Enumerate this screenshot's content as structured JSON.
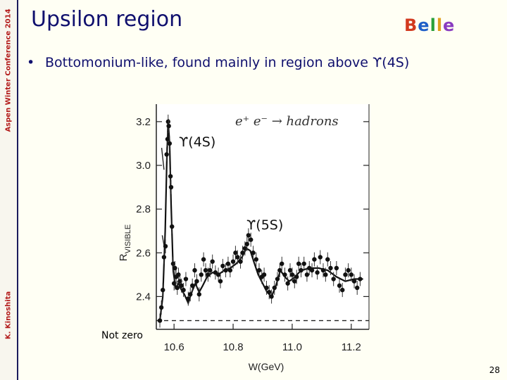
{
  "sidebar": {
    "conference": "Aspen Winter Conference 2014",
    "author": "K. Kinoshita"
  },
  "slide": {
    "title": "Upsilon region",
    "logo": "Belle",
    "bullet": "Bottomonium-like, found mainly in region above ϒ(4S)",
    "page_number": "28"
  },
  "chart_data": {
    "type": "scatter",
    "ylabel": "R",
    "ylabel_sub": "VISIBLE",
    "xlabel": "W(GeV)",
    "xlim": [
      10.54,
      11.26
    ],
    "ylim": [
      2.25,
      3.28
    ],
    "x_ticks": [
      "10.6",
      "10.8",
      "11.0",
      "11.2"
    ],
    "y_ticks": [
      "2.4",
      "2.6",
      "2.8",
      "3.0",
      "3.2"
    ],
    "annotations": {
      "process": "e⁺ e⁻ → hadrons",
      "peak_4s": "ϒ(4S)",
      "peak_5s": "ϒ(5S)",
      "baseline": "Not zero"
    },
    "baseline_level": 2.29,
    "points": [
      {
        "x": 10.552,
        "y": 2.29
      },
      {
        "x": 10.557,
        "y": 2.35
      },
      {
        "x": 10.562,
        "y": 2.43
      },
      {
        "x": 10.566,
        "y": 2.58
      },
      {
        "x": 10.571,
        "y": 2.63
      },
      {
        "x": 10.575,
        "y": 3.05
      },
      {
        "x": 10.578,
        "y": 3.12
      },
      {
        "x": 10.58,
        "y": 3.2
      },
      {
        "x": 10.582,
        "y": 3.18
      },
      {
        "x": 10.585,
        "y": 3.1
      },
      {
        "x": 10.588,
        "y": 2.95
      },
      {
        "x": 10.59,
        "y": 2.9
      },
      {
        "x": 10.593,
        "y": 2.72
      },
      {
        "x": 10.597,
        "y": 2.55
      },
      {
        "x": 10.6,
        "y": 2.46
      },
      {
        "x": 10.603,
        "y": 2.53
      },
      {
        "x": 10.607,
        "y": 2.49
      },
      {
        "x": 10.611,
        "y": 2.44
      },
      {
        "x": 10.615,
        "y": 2.5
      },
      {
        "x": 10.62,
        "y": 2.47
      },
      {
        "x": 10.625,
        "y": 2.45
      },
      {
        "x": 10.632,
        "y": 2.43
      },
      {
        "x": 10.64,
        "y": 2.48
      },
      {
        "x": 10.648,
        "y": 2.39
      },
      {
        "x": 10.655,
        "y": 2.41
      },
      {
        "x": 10.662,
        "y": 2.45
      },
      {
        "x": 10.67,
        "y": 2.52
      },
      {
        "x": 10.677,
        "y": 2.47
      },
      {
        "x": 10.685,
        "y": 2.41
      },
      {
        "x": 10.692,
        "y": 2.5
      },
      {
        "x": 10.7,
        "y": 2.57
      },
      {
        "x": 10.707,
        "y": 2.52
      },
      {
        "x": 10.715,
        "y": 2.5
      },
      {
        "x": 10.722,
        "y": 2.52
      },
      {
        "x": 10.73,
        "y": 2.56
      },
      {
        "x": 10.74,
        "y": 2.51
      },
      {
        "x": 10.75,
        "y": 2.5
      },
      {
        "x": 10.757,
        "y": 2.47
      },
      {
        "x": 10.765,
        "y": 2.54
      },
      {
        "x": 10.775,
        "y": 2.52
      },
      {
        "x": 10.783,
        "y": 2.55
      },
      {
        "x": 10.79,
        "y": 2.52
      },
      {
        "x": 10.8,
        "y": 2.56
      },
      {
        "x": 10.808,
        "y": 2.6
      },
      {
        "x": 10.815,
        "y": 2.58
      },
      {
        "x": 10.825,
        "y": 2.56
      },
      {
        "x": 10.832,
        "y": 2.6
      },
      {
        "x": 10.84,
        "y": 2.62
      },
      {
        "x": 10.847,
        "y": 2.64
      },
      {
        "x": 10.852,
        "y": 2.68
      },
      {
        "x": 10.86,
        "y": 2.66
      },
      {
        "x": 10.868,
        "y": 2.6
      },
      {
        "x": 10.878,
        "y": 2.57
      },
      {
        "x": 10.888,
        "y": 2.52
      },
      {
        "x": 10.897,
        "y": 2.49
      },
      {
        "x": 10.905,
        "y": 2.5
      },
      {
        "x": 10.913,
        "y": 2.44
      },
      {
        "x": 10.922,
        "y": 2.42
      },
      {
        "x": 10.93,
        "y": 2.4
      },
      {
        "x": 10.94,
        "y": 2.44
      },
      {
        "x": 10.95,
        "y": 2.48
      },
      {
        "x": 10.958,
        "y": 2.52
      },
      {
        "x": 10.965,
        "y": 2.55
      },
      {
        "x": 10.975,
        "y": 2.5
      },
      {
        "x": 10.985,
        "y": 2.46
      },
      {
        "x": 10.993,
        "y": 2.52
      },
      {
        "x": 11.0,
        "y": 2.5
      },
      {
        "x": 11.008,
        "y": 2.47
      },
      {
        "x": 11.015,
        "y": 2.49
      },
      {
        "x": 11.022,
        "y": 2.55
      },
      {
        "x": 11.03,
        "y": 2.52
      },
      {
        "x": 11.04,
        "y": 2.55
      },
      {
        "x": 11.05,
        "y": 2.5
      },
      {
        "x": 11.058,
        "y": 2.53
      },
      {
        "x": 11.067,
        "y": 2.52
      },
      {
        "x": 11.075,
        "y": 2.57
      },
      {
        "x": 11.085,
        "y": 2.51
      },
      {
        "x": 11.095,
        "y": 2.58
      },
      {
        "x": 11.105,
        "y": 2.52
      },
      {
        "x": 11.113,
        "y": 2.5
      },
      {
        "x": 11.12,
        "y": 2.57
      },
      {
        "x": 11.13,
        "y": 2.53
      },
      {
        "x": 11.14,
        "y": 2.48
      },
      {
        "x": 11.15,
        "y": 2.53
      },
      {
        "x": 11.16,
        "y": 2.45
      },
      {
        "x": 11.17,
        "y": 2.43
      },
      {
        "x": 11.18,
        "y": 2.5
      },
      {
        "x": 11.19,
        "y": 2.52
      },
      {
        "x": 11.2,
        "y": 2.5
      },
      {
        "x": 11.21,
        "y": 2.47
      },
      {
        "x": 11.22,
        "y": 2.44
      },
      {
        "x": 11.23,
        "y": 2.48
      }
    ],
    "fit_curve": [
      [
        10.552,
        2.29
      ],
      [
        10.562,
        2.4
      ],
      [
        10.57,
        2.7
      ],
      [
        10.576,
        3.05
      ],
      [
        10.58,
        3.2
      ],
      [
        10.585,
        3.1
      ],
      [
        10.59,
        2.82
      ],
      [
        10.597,
        2.52
      ],
      [
        10.605,
        2.44
      ],
      [
        10.615,
        2.46
      ],
      [
        10.625,
        2.43
      ],
      [
        10.635,
        2.41
      ],
      [
        10.648,
        2.37
      ],
      [
        10.66,
        2.42
      ],
      [
        10.672,
        2.46
      ],
      [
        10.685,
        2.42
      ],
      [
        10.697,
        2.45
      ],
      [
        10.712,
        2.49
      ],
      [
        10.73,
        2.51
      ],
      [
        10.75,
        2.5
      ],
      [
        10.77,
        2.52
      ],
      [
        10.79,
        2.53
      ],
      [
        10.81,
        2.55
      ],
      [
        10.83,
        2.58
      ],
      [
        10.845,
        2.62
      ],
      [
        10.858,
        2.61
      ],
      [
        10.87,
        2.56
      ],
      [
        10.885,
        2.5
      ],
      [
        10.9,
        2.46
      ],
      [
        10.915,
        2.42
      ],
      [
        10.93,
        2.4
      ],
      [
        10.945,
        2.45
      ],
      [
        10.96,
        2.52
      ],
      [
        10.975,
        2.49
      ],
      [
        10.99,
        2.47
      ],
      [
        11.01,
        2.49
      ],
      [
        11.03,
        2.52
      ],
      [
        11.06,
        2.53
      ],
      [
        11.09,
        2.53
      ],
      [
        11.12,
        2.52
      ],
      [
        11.15,
        2.49
      ],
      [
        11.18,
        2.47
      ],
      [
        11.21,
        2.48
      ],
      [
        11.24,
        2.48
      ]
    ]
  },
  "colors": {
    "title": "#10106e",
    "sidebar_text": "#b31b1b",
    "logo_letters": [
      "#d23a1f",
      "#1f5fc8",
      "#2aa03a",
      "#e0a020",
      "#8a3cc0"
    ]
  }
}
